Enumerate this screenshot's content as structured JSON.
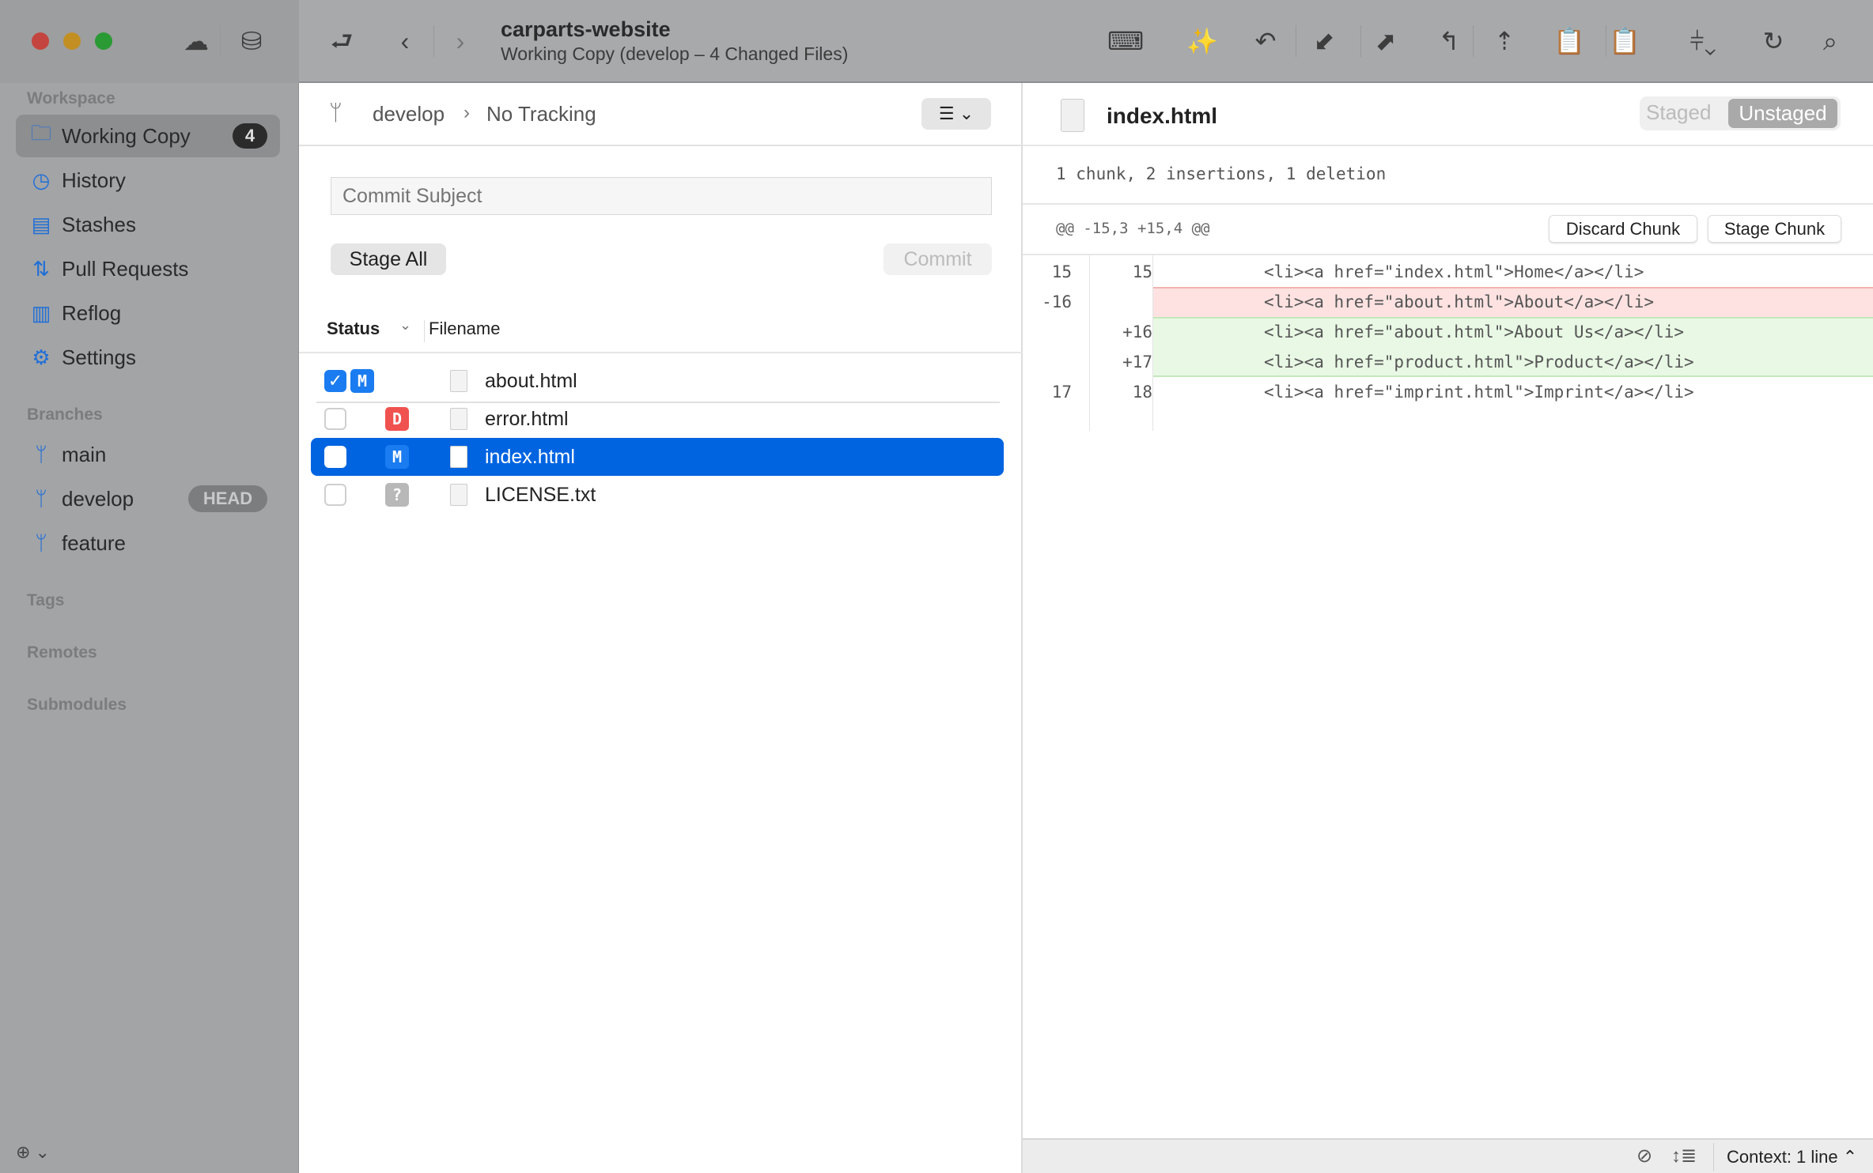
{
  "window": {
    "title": "carparts-website",
    "subtitle": "Working Copy (develop – 4 Changed Files)"
  },
  "toolbar": {
    "icons": [
      "cloud-icon",
      "drive-icon",
      "open-folder-icon",
      "back-icon",
      "forward-icon",
      "terminal-icon",
      "magic-wand-icon",
      "pull-icon",
      "fetch-icon",
      "push-icon",
      "merge-icon",
      "branch-up-icon",
      "stash-save-icon",
      "stash-pop-icon",
      "filter-icon",
      "refresh-icon",
      "search-icon"
    ]
  },
  "sidebar": {
    "workspace_label": "Workspace",
    "items": [
      {
        "label": "Working Copy",
        "badge": "4",
        "icon": "folder-icon"
      },
      {
        "label": "History",
        "icon": "clock-icon"
      },
      {
        "label": "Stashes",
        "icon": "clipboard-icon"
      },
      {
        "label": "Pull Requests",
        "icon": "pull-request-icon"
      },
      {
        "label": "Reflog",
        "icon": "book-icon"
      },
      {
        "label": "Settings",
        "icon": "gear-icon"
      }
    ],
    "branches_label": "Branches",
    "branches": [
      {
        "label": "main"
      },
      {
        "label": "develop",
        "badge": "HEAD"
      },
      {
        "label": "feature"
      }
    ],
    "tags_label": "Tags",
    "remotes_label": "Remotes",
    "submodules_label": "Submodules"
  },
  "middle": {
    "branch": "develop",
    "tracking": "No Tracking",
    "commit_placeholder": "Commit Subject",
    "stage_all": "Stage All",
    "commit": "Commit",
    "col_status": "Status",
    "col_filename": "Filename",
    "files": [
      {
        "name": "about.html",
        "status": "M",
        "checked": true,
        "staged": true
      },
      {
        "name": "error.html",
        "status": "D",
        "checked": false
      },
      {
        "name": "index.html",
        "status": "M",
        "checked": false,
        "selected": true
      },
      {
        "name": "LICENSE.txt",
        "status": "?",
        "checked": false
      }
    ]
  },
  "diff": {
    "filename": "index.html",
    "staged": "Staged",
    "unstaged": "Unstaged",
    "summary": "1 chunk, 2 insertions, 1 deletion",
    "chunk_header": "@@ -15,3 +15,4 @@",
    "discard_chunk": "Discard Chunk",
    "stage_chunk": "Stage Chunk",
    "lines": [
      {
        "old": "15",
        "new": "15",
        "type": "context",
        "text": "<li><a href=\"index.html\">Home</a></li>"
      },
      {
        "old": "-16",
        "new": "",
        "type": "del",
        "text": "<li><a href=\"about.html\">About</a></li>"
      },
      {
        "old": "",
        "new": "+16",
        "type": "add",
        "text": "<li><a href=\"about.html\">About Us</a></li>"
      },
      {
        "old": "",
        "new": "+17",
        "type": "add",
        "text": "<li><a href=\"product.html\">Product</a></li>"
      },
      {
        "old": "17",
        "new": "18",
        "type": "context",
        "text": "<li><a href=\"imprint.html\">Imprint</a></li>"
      }
    ],
    "context": "Context: 1 line ⌃"
  },
  "colors": {
    "accent": "#0064e1",
    "deleted": "#fde2e1",
    "added": "#e8f8e4",
    "badge_d": "#f0524f",
    "badge_m": "#1a7cf0"
  }
}
